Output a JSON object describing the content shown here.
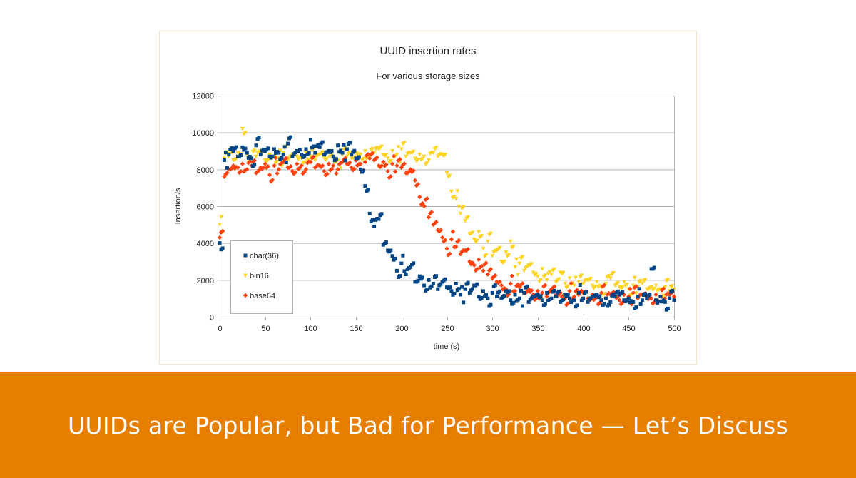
{
  "banner": {
    "title": "UUIDs are Popular, but Bad for Performance — Let’s Discuss",
    "color": "#e67e00"
  },
  "chart_data": {
    "type": "scatter",
    "title": "UUID insertion rates",
    "subtitle": "For various storage sizes",
    "xlabel": "time (s)",
    "ylabel": "Insertion/s",
    "xlim": [
      0,
      500
    ],
    "ylim": [
      0,
      12000
    ],
    "xticks": [
      "0",
      "50",
      "100",
      "150",
      "200",
      "250",
      "300",
      "350",
      "400",
      "450",
      "500"
    ],
    "yticks": [
      "0",
      "2000",
      "4000",
      "6000",
      "8000",
      "10000",
      "12000"
    ],
    "grid": "horizontal",
    "legend_position": "bottom-left inside",
    "x": [
      0,
      5,
      10,
      15,
      20,
      25,
      30,
      35,
      40,
      45,
      50,
      55,
      60,
      65,
      70,
      75,
      80,
      85,
      90,
      95,
      100,
      105,
      110,
      115,
      120,
      125,
      130,
      135,
      140,
      145,
      150,
      155,
      160,
      165,
      170,
      175,
      180,
      185,
      190,
      195,
      200,
      205,
      210,
      215,
      220,
      225,
      230,
      235,
      240,
      245,
      250,
      255,
      260,
      265,
      270,
      275,
      280,
      285,
      290,
      295,
      300,
      305,
      310,
      315,
      320,
      325,
      330,
      335,
      340,
      345,
      350,
      355,
      360,
      365,
      370,
      375,
      380,
      385,
      390,
      395,
      400,
      405,
      410,
      415,
      420,
      425,
      430,
      435,
      440,
      445,
      450,
      455,
      460,
      465,
      470,
      475,
      480,
      485,
      490,
      495,
      500
    ],
    "series": [
      {
        "name": "char(36)",
        "color": "#004586",
        "marker": "square",
        "values": [
          4000,
          8500,
          8800,
          9000,
          8700,
          9200,
          8900,
          8600,
          9300,
          8800,
          9000,
          8700,
          9100,
          8900,
          8800,
          9400,
          8700,
          9000,
          8800,
          9100,
          9600,
          8900,
          9200,
          8800,
          9000,
          8700,
          9300,
          8900,
          9100,
          8800,
          8600,
          8000,
          7100,
          5600,
          4900,
          5300,
          3900,
          3600,
          3300,
          2500,
          2900,
          2300,
          2700,
          1900,
          2200,
          1700,
          2000,
          1800,
          1500,
          1900,
          1600,
          1400,
          1800,
          1200,
          1500,
          1300,
          1700,
          1100,
          1400,
          1000,
          1300,
          1100,
          1000,
          1400,
          900,
          1200,
          1000,
          1300,
          800,
          1100,
          1200,
          900,
          1300,
          1000,
          1100,
          800,
          1200,
          1000,
          900,
          1300,
          1000,
          800,
          1100,
          1200,
          900,
          1000,
          800,
          1100,
          1200,
          900,
          1000,
          800,
          1100,
          900,
          1000,
          2600,
          900,
          1100,
          800,
          1000,
          900
        ]
      },
      {
        "name": "bin16",
        "color": "#ffd320",
        "marker": "triangle-down",
        "values": [
          5000,
          8600,
          8700,
          8500,
          8900,
          10200,
          8800,
          8600,
          8700,
          8900,
          8500,
          8800,
          8700,
          8600,
          8900,
          8500,
          8800,
          8700,
          8600,
          8900,
          8700,
          8500,
          8800,
          8600,
          8900,
          8700,
          8500,
          8800,
          8700,
          8600,
          8900,
          8800,
          9000,
          8700,
          8900,
          9100,
          8800,
          8600,
          9000,
          8800,
          9100,
          8700,
          8900,
          8600,
          8800,
          8700,
          8500,
          8900,
          8700,
          8800,
          7800,
          6800,
          6400,
          5600,
          5200,
          4500,
          4200,
          4600,
          3700,
          4100,
          3300,
          3600,
          3000,
          3500,
          4100,
          2700,
          2900,
          2500,
          2800,
          2400,
          2200,
          2600,
          2000,
          2300,
          1900,
          2400,
          1800,
          2100,
          1700,
          1900,
          1800,
          2000,
          1700,
          1900,
          1600,
          1800,
          2100,
          1700,
          1600,
          1900,
          1500,
          1700,
          1600,
          1800,
          1500,
          1600,
          1700,
          1500,
          1600,
          1400,
          1500
        ]
      },
      {
        "name": "base64",
        "color": "#ff420e",
        "marker": "diamond",
        "values": [
          4300,
          7600,
          8000,
          8200,
          8100,
          8300,
          8000,
          8200,
          7800,
          8100,
          8300,
          7700,
          8200,
          8000,
          8400,
          8100,
          7900,
          8300,
          8200,
          8000,
          8400,
          8100,
          8200,
          7900,
          8300,
          8200,
          8000,
          8400,
          8300,
          8100,
          8500,
          8300,
          8400,
          8600,
          8500,
          8200,
          8400,
          7900,
          8300,
          8200,
          8100,
          7800,
          8000,
          7400,
          6500,
          6000,
          5400,
          5000,
          4700,
          4300,
          3700,
          4200,
          3800,
          3400,
          3600,
          3000,
          2800,
          3100,
          2500,
          2300,
          2100,
          1900,
          1700,
          1500,
          1800,
          1400,
          1600,
          1300,
          1500,
          1200,
          1400,
          1300,
          1100,
          1500,
          1200,
          1300,
          1000,
          1400,
          1100,
          1200,
          1300,
          1000,
          1200,
          1100,
          1300,
          1000,
          1200,
          1100,
          900,
          1200,
          1100,
          1300,
          1000,
          1200,
          1100,
          1000,
          1200,
          1100,
          1000,
          1200,
          1100
        ]
      }
    ]
  }
}
